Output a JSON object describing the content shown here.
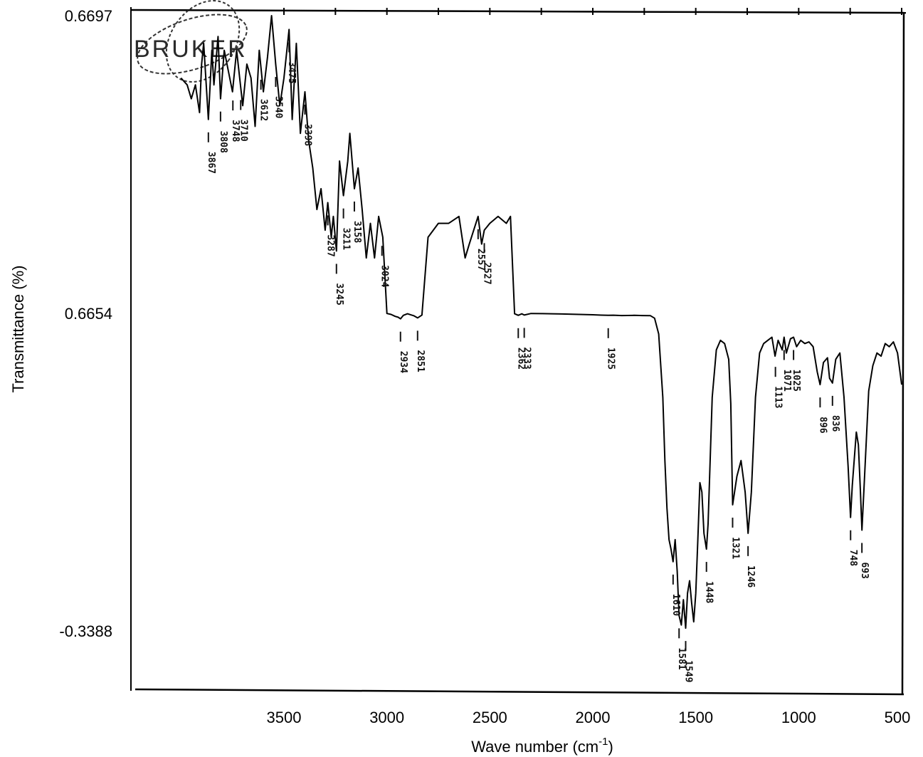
{
  "chart_data": {
    "type": "line",
    "title": "",
    "xlabel": "Wave number (cm",
    "xlabel_superscript": "-1",
    "xlabel_suffix": ")",
    "ylabel": "Transmittance (%)",
    "x_ticks": [
      "3500",
      "3000",
      "2500",
      "2000",
      "1500",
      "1000",
      "500"
    ],
    "y_ticks": [
      "0.6697",
      "0.6654",
      "-0.3388"
    ],
    "x_reversed": true,
    "grid": false,
    "logo_text": "BRUKER",
    "series": [
      {
        "x": [
          4000,
          3970,
          3950,
          3930,
          3910,
          3900,
          3890,
          3867,
          3850,
          3840,
          3820,
          3808,
          3790,
          3770,
          3750,
          3730,
          3700,
          3680,
          3660,
          3640,
          3620,
          3600,
          3580,
          3560,
          3540,
          3520,
          3500,
          3475,
          3460,
          3440,
          3420,
          3398,
          3380,
          3360,
          3340,
          3320,
          3300,
          3287,
          3270,
          3260,
          3245,
          3230,
          3211,
          3190,
          3180,
          3158,
          3140,
          3120,
          3100,
          3080,
          3060,
          3040,
          3020,
          3000,
          2980,
          2960,
          2945,
          2934,
          2920,
          2900,
          2880,
          2870,
          2851,
          2830,
          2800,
          2750,
          2700,
          2650,
          2620,
          2600,
          2557,
          2540,
          2527,
          2500,
          2460,
          2420,
          2400,
          2380,
          2362,
          2345,
          2333,
          2300,
          2250,
          2200,
          2150,
          2100,
          2050,
          2000,
          1960,
          1925,
          1900,
          1860,
          1800,
          1760,
          1720,
          1700,
          1680,
          1660,
          1650,
          1640,
          1630,
          1620,
          1610,
          1600,
          1590,
          1581,
          1570,
          1560,
          1549,
          1540,
          1530,
          1520,
          1510,
          1500,
          1490,
          1480,
          1470,
          1460,
          1448,
          1440,
          1420,
          1400,
          1380,
          1360,
          1340,
          1330,
          1321,
          1300,
          1280,
          1260,
          1246,
          1230,
          1210,
          1190,
          1170,
          1150,
          1130,
          1115,
          1100,
          1080,
          1071,
          1060,
          1040,
          1025,
          1010,
          990,
          970,
          950,
          930,
          910,
          896,
          880,
          860,
          850,
          836,
          820,
          800,
          780,
          760,
          748,
          740,
          720,
          710,
          700,
          693,
          680,
          660,
          640,
          620,
          600,
          580,
          560,
          540,
          520,
          500
        ],
        "y": [
          0.6688,
          0.6687,
          0.6685,
          0.6687,
          0.6683,
          0.669,
          0.6693,
          0.6682,
          0.6692,
          0.6687,
          0.6694,
          0.6685,
          0.6692,
          0.6689,
          0.6686,
          0.6692,
          0.6684,
          0.669,
          0.6688,
          0.6681,
          0.6692,
          0.6686,
          0.6691,
          0.6697,
          0.669,
          0.6684,
          0.6688,
          0.6695,
          0.6682,
          0.6693,
          0.668,
          0.6686,
          0.6679,
          0.6675,
          0.6669,
          0.6672,
          0.6666,
          0.667,
          0.6665,
          0.6668,
          0.6663,
          0.6676,
          0.6671,
          0.6676,
          0.668,
          0.6672,
          0.6675,
          0.6669,
          0.6662,
          0.6667,
          0.6662,
          0.6668,
          0.6665,
          0.665,
          0.662,
          0.656,
          0.653,
          0.648,
          0.659,
          0.664,
          0.66,
          0.658,
          0.651,
          0.66,
          0.6665,
          0.6667,
          0.6667,
          0.6668,
          0.6662,
          0.6664,
          0.6668,
          0.6664,
          0.6666,
          0.6667,
          0.6668,
          0.6667,
          0.6668,
          0.664,
          0.659,
          0.664,
          0.66,
          0.665,
          0.6645,
          0.664,
          0.6633,
          0.6625,
          0.6617,
          0.661,
          0.6597,
          0.659,
          0.6596,
          0.6585,
          0.659,
          0.6585,
          0.658,
          0.65,
          0.6,
          0.4,
          0.2,
          0.05,
          -0.05,
          -0.08,
          -0.12,
          -0.05,
          -0.15,
          -0.29,
          -0.32,
          -0.24,
          -0.33,
          -0.22,
          -0.18,
          -0.25,
          -0.31,
          -0.22,
          -0.05,
          0.13,
          0.1,
          -0.03,
          -0.08,
          0.0,
          0.4,
          0.55,
          0.58,
          0.57,
          0.52,
          0.38,
          0.06,
          0.15,
          0.2,
          0.1,
          -0.03,
          0.1,
          0.4,
          0.54,
          0.57,
          0.58,
          0.59,
          0.53,
          0.58,
          0.55,
          0.59,
          0.54,
          0.585,
          0.59,
          0.56,
          0.58,
          0.57,
          0.575,
          0.56,
          0.48,
          0.44,
          0.51,
          0.525,
          0.46,
          0.445,
          0.52,
          0.54,
          0.4,
          0.18,
          0.02,
          0.12,
          0.29,
          0.25,
          0.1,
          -0.02,
          0.15,
          0.42,
          0.5,
          0.54,
          0.53,
          0.57,
          0.56,
          0.575,
          0.54,
          0.44
        ]
      }
    ],
    "peak_labels": [
      {
        "x": 3867,
        "label": "3867"
      },
      {
        "x": 3808,
        "label": "3808"
      },
      {
        "x": 3748,
        "label": "3748"
      },
      {
        "x": 3710,
        "label": "3710"
      },
      {
        "x": 3612,
        "label": "3612"
      },
      {
        "x": 3540,
        "label": "3540"
      },
      {
        "x": 3475,
        "label": "3475"
      },
      {
        "x": 3398,
        "label": "3398"
      },
      {
        "x": 3287,
        "label": "3287"
      },
      {
        "x": 3245,
        "label": "3245"
      },
      {
        "x": 3211,
        "label": "3211"
      },
      {
        "x": 3158,
        "label": "3158"
      },
      {
        "x": 3024,
        "label": "3024"
      },
      {
        "x": 2934,
        "label": "2934"
      },
      {
        "x": 2851,
        "label": "2851"
      },
      {
        "x": 2557,
        "label": "2557"
      },
      {
        "x": 2527,
        "label": "2527"
      },
      {
        "x": 2362,
        "label": "2362"
      },
      {
        "x": 2333,
        "label": "2333"
      },
      {
        "x": 1925,
        "label": "1925"
      },
      {
        "x": 1610,
        "label": "1610"
      },
      {
        "x": 1581,
        "label": "1581"
      },
      {
        "x": 1549,
        "label": "1549"
      },
      {
        "x": 1448,
        "label": "1448"
      },
      {
        "x": 1321,
        "label": "1321"
      },
      {
        "x": 1246,
        "label": "1246"
      },
      {
        "x": 1113,
        "label": "1113"
      },
      {
        "x": 1071,
        "label": "1071"
      },
      {
        "x": 1025,
        "label": "1025"
      },
      {
        "x": 896,
        "label": "896"
      },
      {
        "x": 836,
        "label": "836"
      },
      {
        "x": 748,
        "label": "748"
      },
      {
        "x": 693,
        "label": "693"
      }
    ]
  }
}
